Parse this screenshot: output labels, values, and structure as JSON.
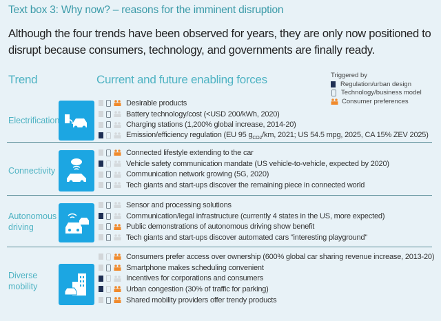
{
  "title": "Text box 3: Why now? – reasons for the imminent disruption",
  "intro": "Although the four trends have been observed for years, they are only now positioned to disrupt because consumers, technology, and governments are finally ready.",
  "headers": {
    "trend": "Trend",
    "forces": "Current and future enabling forces"
  },
  "legend": {
    "title": "Triggered by",
    "items": [
      {
        "icon": "regulation-icon",
        "label": "Regulation/urban design"
      },
      {
        "icon": "technology-icon",
        "label": "Technology/business model"
      },
      {
        "icon": "consumer-icon",
        "label": "Consumer preferences"
      }
    ]
  },
  "colors": {
    "accent": "#4fb3c3",
    "tile": "#1ca6e2",
    "regulation": "#1e2f54",
    "consumer": "#f08a2c",
    "inactive": "#d2d6d9"
  },
  "sections": [
    {
      "trend": "Electrification",
      "icon": "charging-car-icon",
      "items": [
        {
          "text": "Desirable products",
          "triggers": [
            false,
            true,
            true
          ]
        },
        {
          "text": "Battery technology/cost (<USD 200/kWh, 2020)",
          "triggers": [
            false,
            true,
            false
          ]
        },
        {
          "text": "Charging stations (1,200% global increase, 2014-20)",
          "triggers": [
            false,
            true,
            false
          ]
        },
        {
          "text": "Emission/efficiency regulation (EU 95 g",
          "sub": "CO2",
          "after": "/km, 2021; US 54.5 mpg, 2025, CA 15% ZEV 2025)",
          "triggers": [
            true,
            false,
            false
          ]
        }
      ]
    },
    {
      "trend": "Connectivity",
      "icon": "cloud-car-icon",
      "items": [
        {
          "text": "Connected lifestyle extending to the car",
          "triggers": [
            false,
            true,
            true
          ]
        },
        {
          "text": "Vehicle safety communication mandate (US vehicle-to-vehicle, expected by 2020)",
          "triggers": [
            true,
            false,
            false
          ]
        },
        {
          "text": "Communication network growing (5G, 2020)",
          "triggers": [
            false,
            true,
            false
          ]
        },
        {
          "text": "Tech giants and start-ups discover the remaining piece in connected world",
          "triggers": [
            false,
            true,
            false
          ]
        }
      ]
    },
    {
      "trend": "Autonomous driving",
      "icon": "autonomous-cars-icon",
      "items": [
        {
          "text": "Sensor and processing solutions",
          "triggers": [
            false,
            true,
            false
          ]
        },
        {
          "text": "Communication/legal infrastructure (currently 4 states in the US, more expected)",
          "triggers": [
            true,
            true,
            false
          ]
        },
        {
          "text": "Public demonstrations of autonomous driving show benefit",
          "triggers": [
            false,
            true,
            true
          ]
        },
        {
          "text": "Tech giants and start-ups discover automated cars \"interesting playground\"",
          "triggers": [
            false,
            true,
            false
          ]
        }
      ]
    },
    {
      "trend": "Diverse mobility",
      "icon": "city-car-icon",
      "items": [
        {
          "text": "Consumers prefer access over ownership (600% global car sharing revenue increase, 2013-20)",
          "triggers": [
            false,
            false,
            true
          ]
        },
        {
          "text": "Smartphone makes scheduling convenient",
          "triggers": [
            false,
            true,
            true
          ]
        },
        {
          "text": "Incentives for corporations and consumers",
          "triggers": [
            true,
            false,
            false
          ]
        },
        {
          "text": "Urban congestion (30% of traffic for parking)",
          "triggers": [
            true,
            false,
            true
          ]
        },
        {
          "text": "Shared mobility providers offer trendy products",
          "triggers": [
            false,
            true,
            true
          ]
        }
      ]
    }
  ]
}
